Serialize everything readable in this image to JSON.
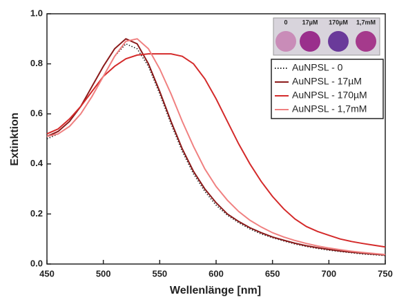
{
  "chart_data": {
    "type": "line",
    "x_label": "Wellenlänge [nm]",
    "y_label": "Extinktion",
    "x": [
      450,
      460,
      470,
      480,
      490,
      500,
      510,
      520,
      530,
      540,
      550,
      560,
      570,
      580,
      590,
      600,
      610,
      620,
      630,
      640,
      650,
      660,
      670,
      680,
      690,
      700,
      710,
      720,
      730,
      740,
      750
    ],
    "series": [
      {
        "name": "AuNPSL - 0",
        "color": "#222222",
        "dash": "dotted",
        "values": [
          0.5,
          0.52,
          0.55,
          0.6,
          0.67,
          0.75,
          0.83,
          0.88,
          0.86,
          0.79,
          0.68,
          0.56,
          0.45,
          0.36,
          0.29,
          0.235,
          0.195,
          0.165,
          0.14,
          0.12,
          0.105,
          0.092,
          0.08,
          0.07,
          0.062,
          0.055,
          0.05,
          0.045,
          0.04,
          0.037,
          0.034
        ]
      },
      {
        "name": "AuNPSL - 17µM",
        "color": "#8b1a1a",
        "values": [
          0.51,
          0.53,
          0.57,
          0.63,
          0.71,
          0.79,
          0.86,
          0.9,
          0.88,
          0.8,
          0.69,
          0.57,
          0.46,
          0.37,
          0.3,
          0.245,
          0.2,
          0.17,
          0.145,
          0.125,
          0.108,
          0.095,
          0.083,
          0.073,
          0.065,
          0.058,
          0.052,
          0.047,
          0.043,
          0.039,
          0.036
        ]
      },
      {
        "name": "AuNPSL - 170µM",
        "color": "#d42a2a",
        "values": [
          0.52,
          0.54,
          0.58,
          0.63,
          0.69,
          0.75,
          0.79,
          0.82,
          0.835,
          0.84,
          0.84,
          0.84,
          0.83,
          0.8,
          0.74,
          0.66,
          0.57,
          0.48,
          0.4,
          0.33,
          0.27,
          0.22,
          0.18,
          0.15,
          0.13,
          0.115,
          0.1,
          0.09,
          0.082,
          0.075,
          0.068
        ]
      },
      {
        "name": "AuNPSL - 1,7mM",
        "color": "#f08080",
        "values": [
          0.51,
          0.52,
          0.55,
          0.6,
          0.67,
          0.75,
          0.83,
          0.89,
          0.9,
          0.86,
          0.78,
          0.68,
          0.57,
          0.47,
          0.38,
          0.31,
          0.255,
          0.21,
          0.175,
          0.148,
          0.125,
          0.108,
          0.094,
          0.082,
          0.072,
          0.064,
          0.057,
          0.051,
          0.046,
          0.042,
          0.038
        ]
      }
    ],
    "xlim": [
      450,
      750
    ],
    "xticks": [
      450,
      500,
      550,
      600,
      650,
      700,
      750
    ],
    "ylim": [
      0,
      1.0
    ],
    "yticks": [
      {
        "value": 0,
        "label": "0.0"
      },
      0.2,
      0.4,
      0.6,
      0.8,
      {
        "value": 1.0,
        "label": "1.0"
      }
    ],
    "inset_labels": [
      "0",
      "17µM",
      "170µM",
      "1,7mM"
    ],
    "legend": "upper right"
  }
}
